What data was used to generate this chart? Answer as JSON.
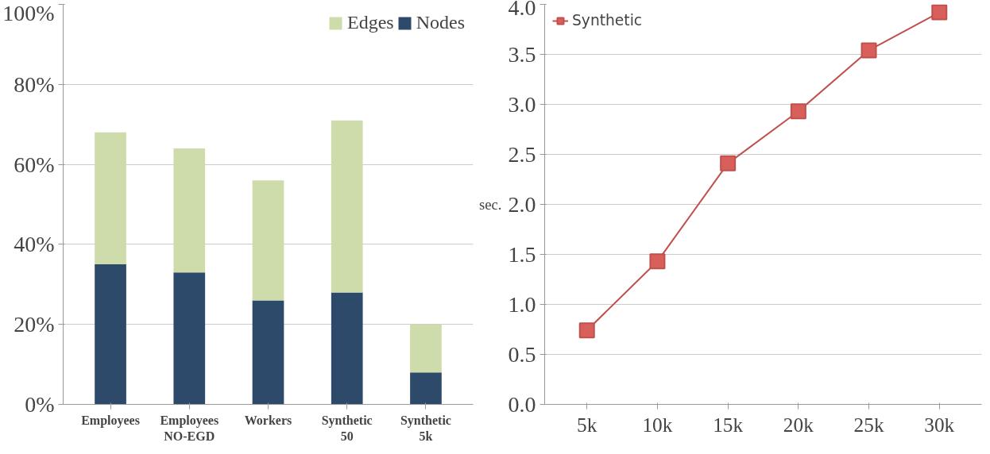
{
  "chart_data": [
    {
      "type": "bar",
      "stacked": true,
      "categories": [
        "Employees",
        "Employees\nNO-EGD",
        "Workers",
        "Synthetic\n50",
        "Synthetic\n5k"
      ],
      "ylim": [
        0,
        100
      ],
      "yticks": [
        {
          "value": 0,
          "label": "0%"
        },
        {
          "value": 20,
          "label": "20%"
        },
        {
          "value": 40,
          "label": "40%"
        },
        {
          "value": 60,
          "label": "60%"
        },
        {
          "value": 80,
          "label": "80%"
        },
        {
          "value": 100,
          "label": "100%"
        }
      ],
      "grid": "y",
      "legend": "top right",
      "series": [
        {
          "name": "Nodes",
          "color": "#2e4a6b",
          "values": [
            35,
            33,
            26,
            28,
            8
          ]
        },
        {
          "name": "Edges",
          "color": "#cddcaa",
          "values": [
            33,
            31,
            30,
            43,
            12
          ]
        }
      ]
    },
    {
      "type": "line",
      "ylabel": "sec.",
      "categories": [
        "5k",
        "10k",
        "15k",
        "20k",
        "25k",
        "30k"
      ],
      "ylim": [
        0,
        4
      ],
      "yticks": [
        {
          "value": 0,
          "label": "0.0"
        },
        {
          "value": 0.5,
          "label": "0.5"
        },
        {
          "value": 1,
          "label": "1.0"
        },
        {
          "value": 1.5,
          "label": "1.5"
        },
        {
          "value": 2,
          "label": "2.0"
        },
        {
          "value": 2.5,
          "label": "2.5"
        },
        {
          "value": 3,
          "label": "3.0"
        },
        {
          "value": 3.5,
          "label": "3.5"
        },
        {
          "value": 4,
          "label": "4.0"
        }
      ],
      "grid": "y",
      "legend": "top left",
      "marker": "square",
      "series": [
        {
          "name": "Synthetic",
          "color": "#c0504d",
          "values": [
            0.74,
            1.43,
            2.41,
            2.93,
            3.54,
            3.92
          ]
        }
      ]
    }
  ]
}
